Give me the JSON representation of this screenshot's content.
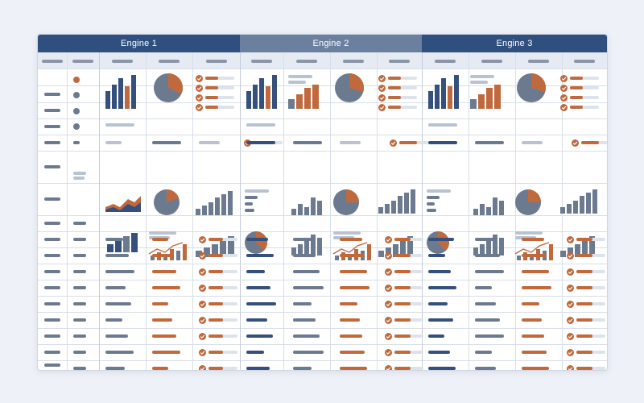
{
  "engines": [
    {
      "label": "Engine 1",
      "color": "#2f4f7f"
    },
    {
      "label": "Engine 2",
      "color": "#6b7f9e"
    },
    {
      "label": "Engine 3",
      "color": "#2f4f7f"
    }
  ],
  "colors": {
    "navy": "#35507d",
    "orange": "#c0693c",
    "gray": "#6c7a90",
    "light": "#b8c2d1",
    "header_bar": "#8a96a8"
  },
  "icons": {
    "check": "check-circle-icon",
    "bullet": "status-dot-icon"
  }
}
